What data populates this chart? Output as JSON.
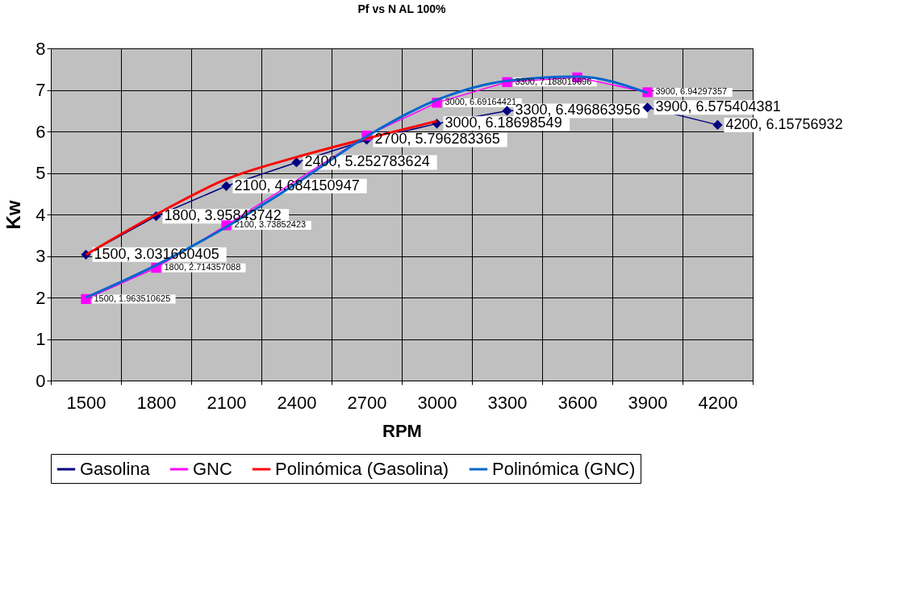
{
  "chart_data": {
    "type": "line",
    "title": "Pf vs N AL 100%",
    "xlabel": "RPM",
    "ylabel": "Kw",
    "categories": [
      "1500",
      "1800",
      "2100",
      "2400",
      "2700",
      "3000",
      "3300",
      "3600",
      "3900",
      "4200"
    ],
    "series": [
      {
        "name": "Gasolina",
        "color": "#000080",
        "marker": "diamond",
        "values": [
          3.031660405,
          3.95843742,
          4.684150947,
          5.252783624,
          5.796283365,
          6.18698549,
          6.496863956,
          null,
          6.575404381,
          6.15756932
        ],
        "value_labels": [
          "1500, 3.031660405",
          "1800, 3.95843742",
          "2100, 4.684150947",
          "2400, 5.252783624",
          "2700, 5.796283365",
          "3000, 6.18698549",
          "3300, 6.496863956",
          null,
          "3900, 6.575404381",
          "4200, 6.15756932"
        ]
      },
      {
        "name": "GNC",
        "color": "#ff00ff",
        "marker": "square",
        "values": [
          1.963510625,
          2.714357088,
          3.73852423,
          null,
          5.9,
          6.69164421,
          7.188019696,
          7.3,
          6.94297357,
          null
        ],
        "value_labels": [
          "1500, 1.963510625",
          "1800, 2.714357088",
          "2100, 3.73852423",
          null,
          null,
          "3000, 6.69164421",
          "3300, 7.188019696",
          null,
          "3900, 6.94297357",
          null
        ]
      },
      {
        "name": "Polinómica (Gasolina)",
        "type": "line",
        "color": "#ff0000",
        "marker": "none",
        "values": [
          3.03,
          4.0,
          4.85,
          5.38,
          5.83,
          6.25,
          null,
          null,
          null,
          null
        ]
      },
      {
        "name": "Polinómica (GNC)",
        "type": "line",
        "color": "#0066cc",
        "marker": "none",
        "values": [
          2.0,
          2.78,
          3.7,
          4.75,
          5.88,
          6.76,
          7.22,
          7.32,
          6.93,
          null
        ]
      }
    ],
    "ylim": [
      0,
      8
    ],
    "yticks": [
      0,
      1,
      2,
      3,
      4,
      5,
      6,
      7,
      8
    ],
    "grid": true,
    "legend": "bottom"
  }
}
